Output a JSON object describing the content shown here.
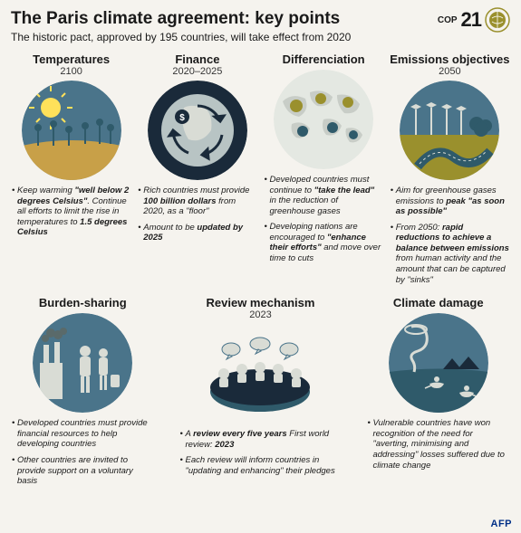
{
  "colors": {
    "background": "#f5f3ee",
    "circle_bg": "#4a748a",
    "teal_ground": "#2f5a6a",
    "accent_olive": "#9a902d",
    "accent_light": "#d9dcd5",
    "white": "#ffffff"
  },
  "header": {
    "title": "The Paris climate agreement: key points",
    "subtitle": "The historic pact, approved by 195 countries, will take effect from 2020",
    "logo_cop": "COP",
    "logo_num": "21"
  },
  "row1": [
    {
      "title": "Temperatures",
      "year": "2100",
      "bullets": [
        "Keep warming <b>\"well below 2 degrees Celsius\"</b>. Continue all efforts to limit the rise in temperatures to <b>1.5 degrees Celsius</b>"
      ]
    },
    {
      "title": "Finance",
      "year": "2020–2025",
      "bullets": [
        "Rich countries must provide <b>100 billion dollars</b> from 2020, as a \"floor\"",
        "Amount to be <b>updated by 2025</b>"
      ]
    },
    {
      "title": "Differenciation",
      "year": "",
      "bullets": [
        "Developed countries must continue to <b>\"take the lead\"</b> in the reduction of greenhouse gases",
        "Developing nations are encouraged to <b>\"enhance their efforts\"</b> and move over time to cuts"
      ]
    },
    {
      "title": "Emissions objectives",
      "year": "2050",
      "bullets": [
        "Aim for greenhouse gases emissions to <b>peak \"as soon as possible\"</b>",
        "From 2050: <b>rapid reductions to achieve a balance between emissions</b> from human activity and the amount that can be captured by \"sinks\""
      ]
    }
  ],
  "row2": [
    {
      "title": "Burden-sharing",
      "year": "",
      "bullets": [
        "Developed countries must provide financial resources to help developing countries",
        "Other countries are invited to provide support on a voluntary basis"
      ]
    },
    {
      "title": "Review mechanism",
      "year": "2023",
      "bullets": [
        "A <b>review every five years</b>  First world review: <b>2023</b>",
        "Each review will inform countries in \"updating and enhancing\" their pledges"
      ]
    },
    {
      "title": "Climate damage",
      "year": "",
      "bullets": [
        "Vulnerable countries have won recognition of the need for \"averting, minimising and addressing\" losses suffered due to climate change"
      ]
    }
  ],
  "footer": {
    "credit": "AFP"
  }
}
